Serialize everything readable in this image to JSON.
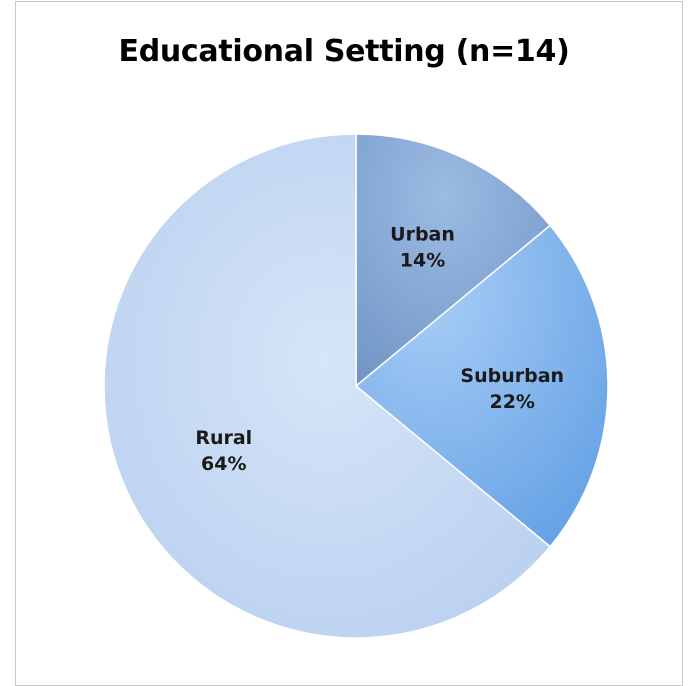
{
  "chart_data": {
    "type": "pie",
    "title": "Educational Setting (n=14)",
    "slices": [
      {
        "label": "Urban",
        "value": 14,
        "display": "14%",
        "color": "#86a8d4"
      },
      {
        "label": "Suburban",
        "value": 22,
        "display": "22%",
        "color": "#8ab8ee"
      },
      {
        "label": "Rural",
        "value": 64,
        "display": "64%",
        "color": "#c7daf3"
      }
    ],
    "legend": "none"
  }
}
